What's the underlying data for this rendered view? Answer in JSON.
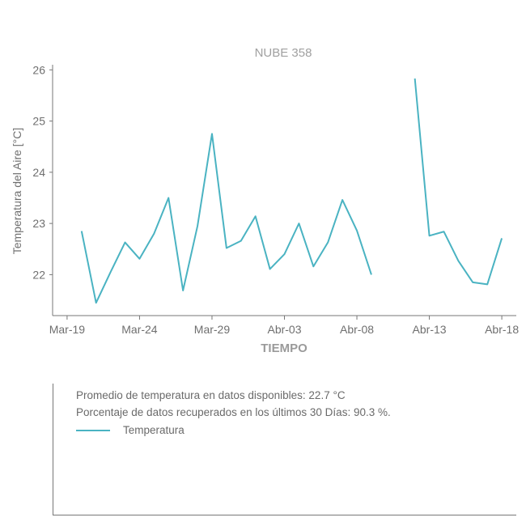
{
  "chart_data": {
    "type": "line",
    "title": "NUBE 358",
    "xlabel": "TIEMPO",
    "ylabel": "Temperatura del Aire [°C]",
    "ylim": [
      21.2,
      26.1
    ],
    "yticks": [
      22,
      23,
      24,
      25,
      26
    ],
    "xlim": [
      "2023-03-18",
      "2023-04-19"
    ],
    "xticks": [
      {
        "date": "2023-03-19",
        "label": "Mar-19"
      },
      {
        "date": "2023-03-24",
        "label": "Mar-24"
      },
      {
        "date": "2023-03-29",
        "label": "Mar-29"
      },
      {
        "date": "2023-04-03",
        "label": "Abr-03"
      },
      {
        "date": "2023-04-08",
        "label": "Abr-08"
      },
      {
        "date": "2023-04-13",
        "label": "Abr-13"
      },
      {
        "date": "2023-04-18",
        "label": "Abr-18"
      }
    ],
    "color": "#4ab3c2",
    "series": [
      {
        "name": "Temperatura",
        "points": [
          {
            "x": "2023-03-20",
            "y": 22.85
          },
          {
            "x": "2023-03-21",
            "y": 21.45
          },
          {
            "x": "2023-03-22",
            "y": 22.05
          },
          {
            "x": "2023-03-23",
            "y": 22.63
          },
          {
            "x": "2023-03-24",
            "y": 22.31
          },
          {
            "x": "2023-03-25",
            "y": 22.8
          },
          {
            "x": "2023-03-26",
            "y": 23.5
          },
          {
            "x": "2023-03-27",
            "y": 21.69
          },
          {
            "x": "2023-03-28",
            "y": 22.95
          },
          {
            "x": "2023-03-29",
            "y": 24.75
          },
          {
            "x": "2023-03-30",
            "y": 22.52
          },
          {
            "x": "2023-03-31",
            "y": 22.66
          },
          {
            "x": "2023-04-01",
            "y": 23.14
          },
          {
            "x": "2023-04-02",
            "y": 22.11
          },
          {
            "x": "2023-04-03",
            "y": 22.4
          },
          {
            "x": "2023-04-04",
            "y": 23.0
          },
          {
            "x": "2023-04-05",
            "y": 22.16
          },
          {
            "x": "2023-04-06",
            "y": 22.63
          },
          {
            "x": "2023-04-07",
            "y": 23.46
          },
          {
            "x": "2023-04-08",
            "y": 22.86
          },
          {
            "x": "2023-04-09",
            "y": 22.0
          },
          {
            "x": "2023-04-10",
            "y": null
          },
          {
            "x": "2023-04-11",
            "y": null
          },
          {
            "x": "2023-04-12",
            "y": 25.83
          },
          {
            "x": "2023-04-13",
            "y": 22.76
          },
          {
            "x": "2023-04-14",
            "y": 22.84
          },
          {
            "x": "2023-04-15",
            "y": 22.27
          },
          {
            "x": "2023-04-16",
            "y": 21.85
          },
          {
            "x": "2023-04-17",
            "y": 21.81
          },
          {
            "x": "2023-04-18",
            "y": 22.71
          }
        ]
      }
    ]
  },
  "info": {
    "average_text": "Promedio de temperatura en datos disponibles: 22.7 °C",
    "percentage_text": "Porcentaje de datos recuperados en los últimos 30 Días: 90.3 %."
  },
  "legend": {
    "label": "Temperatura"
  }
}
